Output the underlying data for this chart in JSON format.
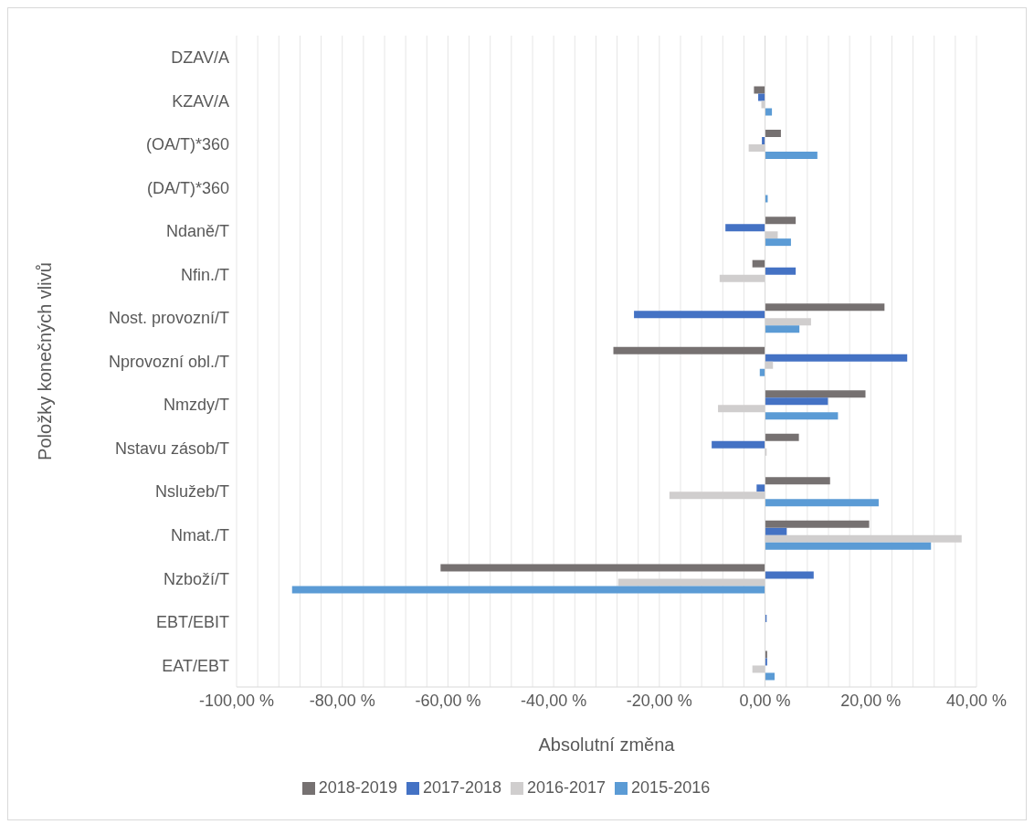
{
  "chart_data": {
    "type": "bar",
    "orientation": "horizontal",
    "xlabel": "Absolutní změna",
    "ylabel": "Položky konečných vlivů",
    "categories": [
      "DZAV/A",
      "KZAV/A",
      "(OA/T)*360",
      "(DA/T)*360",
      "Ndaně/T",
      "Nfin./T",
      "Nost. provozní/T",
      "Nprovozní obl./T",
      "Nmzdy/T",
      "Nstavu zásob/T",
      "Nslužeb/T",
      "Nmat./T",
      "Nzboží/T",
      "EBT/EBIT",
      "EAT/EBT"
    ],
    "series": [
      {
        "name": "2018-2019",
        "color": "#767171",
        "values": [
          0,
          -2.1,
          3.0,
          null,
          5.8,
          -2.4,
          22.6,
          -28.7,
          19.0,
          6.4,
          12.3,
          19.7,
          -61.4,
          0,
          0.4
        ]
      },
      {
        "name": "2017-2018",
        "color": "#4472c4",
        "values": [
          0,
          -1.3,
          -0.6,
          null,
          -7.5,
          5.8,
          -24.8,
          26.9,
          11.9,
          -10.1,
          -1.6,
          4.1,
          9.2,
          0.3,
          0.4
        ]
      },
      {
        "name": "2016-2017",
        "color": "#d0cece",
        "values": [
          0,
          -0.7,
          -3.1,
          0,
          2.4,
          -8.6,
          8.7,
          1.5,
          -8.9,
          0.3,
          -18.1,
          37.2,
          -27.8,
          0,
          -2.4
        ]
      },
      {
        "name": "2015-2016",
        "color": "#5b9bd5",
        "values": [
          0,
          1.3,
          9.9,
          0.5,
          4.9,
          0,
          6.5,
          -1.0,
          13.8,
          0,
          21.5,
          31.4,
          -89.5,
          null,
          1.8
        ]
      }
    ],
    "xlim": [
      -100,
      40
    ],
    "xticks": [
      {
        "value": -100,
        "label": "-100,00 %"
      },
      {
        "value": -96,
        "label": null
      },
      {
        "value": -92,
        "label": null
      },
      {
        "value": -88,
        "label": null
      },
      {
        "value": -84,
        "label": null
      },
      {
        "value": -80,
        "label": "-80,00 %"
      },
      {
        "value": -76,
        "label": null
      },
      {
        "value": -72,
        "label": null
      },
      {
        "value": -68,
        "label": null
      },
      {
        "value": -64,
        "label": null
      },
      {
        "value": -60,
        "label": "-60,00 %"
      },
      {
        "value": -56,
        "label": null
      },
      {
        "value": -52,
        "label": null
      },
      {
        "value": -48,
        "label": null
      },
      {
        "value": -44,
        "label": null
      },
      {
        "value": -40,
        "label": "-40,00 %"
      },
      {
        "value": -36,
        "label": null
      },
      {
        "value": -32,
        "label": null
      },
      {
        "value": -28,
        "label": null
      },
      {
        "value": -24,
        "label": null
      },
      {
        "value": -20,
        "label": "-20,00 %"
      },
      {
        "value": -16,
        "label": null
      },
      {
        "value": -12,
        "label": null
      },
      {
        "value": -8,
        "label": null
      },
      {
        "value": -4,
        "label": null
      },
      {
        "value": 0,
        "label": "0,00 %"
      },
      {
        "value": 4,
        "label": null
      },
      {
        "value": 8,
        "label": null
      },
      {
        "value": 12,
        "label": null
      },
      {
        "value": 16,
        "label": null
      },
      {
        "value": 20,
        "label": "20,00 %"
      },
      {
        "value": 24,
        "label": null
      },
      {
        "value": 28,
        "label": null
      },
      {
        "value": 32,
        "label": null
      },
      {
        "value": 36,
        "label": null
      },
      {
        "value": 40,
        "label": "40,00 %"
      }
    ],
    "grid": true,
    "legend": "bottom"
  }
}
